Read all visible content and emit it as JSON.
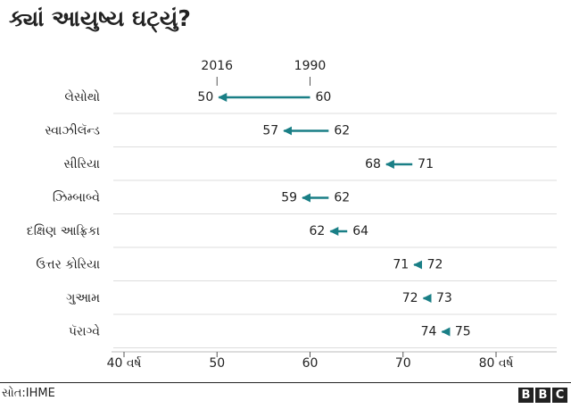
{
  "title": "ક્યાં આયુષ્ય ઘટ્યું?",
  "footer": {
    "source": "સોત:IHME",
    "logo_letters": [
      "B",
      "B",
      "C"
    ]
  },
  "chart_data": {
    "type": "dot-arrow",
    "title": "ક્યાં આયુષ્ય ઘટ્યું?",
    "series_labels": [
      "2016",
      "1990"
    ],
    "xlim": [
      40,
      80
    ],
    "x_ticks": [
      {
        "value": 40,
        "label": "40 વર્ષ"
      },
      {
        "value": 50,
        "label": "50"
      },
      {
        "value": 60,
        "label": "60"
      },
      {
        "value": 70,
        "label": "70"
      },
      {
        "value": 80,
        "label": "80 વર્ષ"
      }
    ],
    "grid": true,
    "colors": {
      "arrow": "#1a7f86",
      "grid": "#dddddd",
      "text": "#222222"
    },
    "rows": [
      {
        "country": "લેસોથો",
        "v1990": 60,
        "v2016": 50
      },
      {
        "country": "સ્વાઝીલૅન્ડ",
        "v1990": 62,
        "v2016": 57
      },
      {
        "country": "સીરિયા",
        "v1990": 71,
        "v2016": 68
      },
      {
        "country": "ઝિમ્બાબ્વે",
        "v1990": 62,
        "v2016": 59
      },
      {
        "country": "દક્ષિણ આફ્રિકા",
        "v1990": 64,
        "v2016": 62
      },
      {
        "country": "ઉત્તર કોરિયા",
        "v1990": 72,
        "v2016": 71
      },
      {
        "country": "ગુઆમ",
        "v1990": 73,
        "v2016": 72
      },
      {
        "country": "પૅરાગ્વે",
        "v1990": 75,
        "v2016": 74
      }
    ]
  }
}
